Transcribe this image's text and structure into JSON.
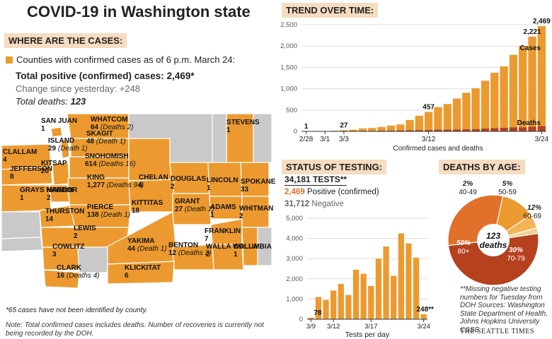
{
  "title": "COVID-19 in Washington state",
  "cases_section": {
    "header": "WHERE ARE THE CASES:",
    "legend": "Counties with confirmed cases as of 6 p.m. March 24:",
    "total_label": "Total positive (confirmed) cases: ",
    "total_value": "2,469*",
    "change_label": "Change since yesterday: ",
    "change_value": "+248",
    "deaths_label": "Total deaths: ",
    "deaths_value": "123",
    "footnote1": "*65 cases have not been identified by county.",
    "footnote2": "Note: Total confirmed cases includes deaths. Number of recoveries is currently not being recorded by the DOH."
  },
  "map": {
    "colors": {
      "confirmed": "#ec9a2f",
      "none": "#c9c9c9",
      "border": "#ffffff"
    },
    "counties": [
      {
        "name": "WHATCOM",
        "cases": "64",
        "deaths": "(Deaths 2)"
      },
      {
        "name": "SAN JUAN",
        "cases": "1",
        "deaths": ""
      },
      {
        "name": "ISLAND",
        "cases": "29",
        "deaths": "(Death 1)"
      },
      {
        "name": "SKAGIT",
        "cases": "48",
        "deaths": "(Death 1)"
      },
      {
        "name": "SNOHOMISH",
        "cases": "614",
        "deaths": "(Deaths 16)"
      },
      {
        "name": "STEVENS",
        "cases": "1",
        "deaths": ""
      },
      {
        "name": "CLALLAM",
        "cases": "4",
        "deaths": ""
      },
      {
        "name": "JEFFERSON",
        "cases": "8",
        "deaths": ""
      },
      {
        "name": "KITSAP",
        "cases": "20",
        "deaths": ""
      },
      {
        "name": "CHELAN",
        "cases": "6",
        "deaths": ""
      },
      {
        "name": "DOUGLAS",
        "cases": "2",
        "deaths": ""
      },
      {
        "name": "LINCOLN",
        "cases": "1",
        "deaths": ""
      },
      {
        "name": "SPOKANE",
        "cases": "33",
        "deaths": ""
      },
      {
        "name": "GRAYS HARBOR",
        "cases": "1",
        "deaths": ""
      },
      {
        "name": "MASON",
        "cases": "2",
        "deaths": ""
      },
      {
        "name": "KING",
        "cases": "1,277",
        "deaths": "(Deaths 94)"
      },
      {
        "name": "KITTITAS",
        "cases": "18",
        "deaths": ""
      },
      {
        "name": "GRANT",
        "cases": "27",
        "deaths": "(Death 1)"
      },
      {
        "name": "ADAMS",
        "cases": "1",
        "deaths": ""
      },
      {
        "name": "WHITMAN",
        "cases": "2",
        "deaths": ""
      },
      {
        "name": "THURSTON",
        "cases": "14",
        "deaths": ""
      },
      {
        "name": "PIERCE",
        "cases": "138",
        "deaths": "(Death 1)"
      },
      {
        "name": "LEWIS",
        "cases": "2",
        "deaths": ""
      },
      {
        "name": "FRANKLIN",
        "cases": "7",
        "deaths": ""
      },
      {
        "name": "YAKIMA",
        "cases": "44",
        "deaths": "(Death 1)"
      },
      {
        "name": "BENTON",
        "cases": "12",
        "deaths": "(Deaths 2)"
      },
      {
        "name": "WALLA WALLA",
        "cases": "2",
        "deaths": ""
      },
      {
        "name": "COLUMBIA",
        "cases": "1",
        "deaths": ""
      },
      {
        "name": "COWLITZ",
        "cases": "3",
        "deaths": ""
      },
      {
        "name": "CLARK",
        "cases": "16",
        "deaths": "(Deaths 4)"
      },
      {
        "name": "KLICKITAT",
        "cases": "6",
        "deaths": ""
      }
    ]
  },
  "testing": {
    "header": "STATUS OF TESTING:",
    "total": "34,181 TESTS**",
    "positive_value": "2,469",
    "positive_label": "Positive (confirmed)",
    "negative_value": "31,712",
    "negative_label": "Negative"
  },
  "deaths_age_header": "DEATHS BY AGE:",
  "sources": "**Missing negative testing numbers for Tuesday from DOH Sources: Washington State Department of Health, Johns Hopkins University CSSE",
  "credit": "THE SEATTLE TIMES",
  "chart_data": [
    {
      "type": "bar",
      "title": "TREND OVER TIME:",
      "xlabel": "Confirmed cases and deaths",
      "ylim": [
        0,
        2500
      ],
      "yticks": [
        "0",
        "500",
        "1,000",
        "1,500",
        "2,000",
        "2,500"
      ],
      "ytick_values": [
        0,
        500,
        1000,
        1500,
        2000,
        2500
      ],
      "categories": [
        "2/28",
        "2/29",
        "3/1",
        "3/2",
        "3/3",
        "3/4",
        "3/5",
        "3/6",
        "3/7",
        "3/8",
        "3/9",
        "3/10",
        "3/11",
        "3/12",
        "3/13",
        "3/14",
        "3/15",
        "3/16",
        "3/17",
        "3/18",
        "3/19",
        "3/20",
        "3/21",
        "3/22",
        "3/23",
        "3/24"
      ],
      "xtick_labels": [
        "2/28",
        "3/1",
        "3/3",
        "3/12",
        "3/24"
      ],
      "series": [
        {
          "name": "Cases",
          "color": "#ec9a2f",
          "values": [
            1,
            1,
            5,
            14,
            27,
            39,
            70,
            79,
            102,
            136,
            162,
            267,
            366,
            457,
            568,
            642,
            769,
            904,
            1012,
            1187,
            1376,
            1524,
            1793,
            1996,
            2221,
            2469
          ]
        },
        {
          "name": "Deaths",
          "color": "#b5411f",
          "values": [
            0,
            1,
            2,
            6,
            9,
            10,
            11,
            12,
            16,
            18,
            22,
            24,
            29,
            31,
            37,
            40,
            42,
            48,
            52,
            66,
            74,
            83,
            94,
            95,
            110,
            123
          ]
        }
      ],
      "data_labels": [
        {
          "category": "2/28",
          "text": "1"
        },
        {
          "category": "3/3",
          "text": "27"
        },
        {
          "category": "3/12",
          "text": "457"
        },
        {
          "category": "3/23",
          "text": "2,221"
        },
        {
          "category": "3/24",
          "text": "2,469"
        }
      ]
    },
    {
      "type": "bar",
      "title": "Tests per day",
      "xlabel": "Tests per day",
      "color": "#ec9a2f",
      "ylim": [
        0,
        5000
      ],
      "yticks": [
        "0",
        "1,000",
        "2,000",
        "3,000",
        "4,000",
        "5,000"
      ],
      "ytick_values": [
        0,
        1000,
        2000,
        3000,
        4000,
        5000
      ],
      "categories": [
        "3/9",
        "3/10",
        "3/11",
        "3/12",
        "3/13",
        "3/14",
        "3/15",
        "3/16",
        "3/17",
        "3/18",
        "3/19",
        "3/20",
        "3/21",
        "3/22",
        "3/23",
        "3/24"
      ],
      "xtick_labels": [
        "3/9",
        "3/12",
        "3/17",
        "3/24"
      ],
      "values": [
        78,
        1100,
        950,
        1420,
        1750,
        1200,
        2450,
        2250,
        1650,
        3000,
        3600,
        2150,
        4250,
        3750,
        3050,
        248
      ],
      "data_labels": [
        {
          "category": "3/9",
          "text": "78"
        },
        {
          "category": "3/24",
          "text": "248**"
        }
      ]
    },
    {
      "type": "pie",
      "title": "DEATHS BY AGE:",
      "center_label": "123 deaths",
      "slices": [
        {
          "pct": "50%",
          "label": "80+",
          "value": 50,
          "color": "#b5411f"
        },
        {
          "pct": "30%",
          "label": "70-79",
          "value": 30,
          "color": "#e0702a"
        },
        {
          "pct": "12%",
          "label": "60-69",
          "value": 12,
          "color": "#ec9a2f"
        },
        {
          "pct": "5%",
          "label": "50-59",
          "value": 5,
          "color": "#f3b356"
        },
        {
          "pct": "2%",
          "label": "40-49",
          "value": 2,
          "color": "#f8cf8e"
        }
      ]
    }
  ]
}
